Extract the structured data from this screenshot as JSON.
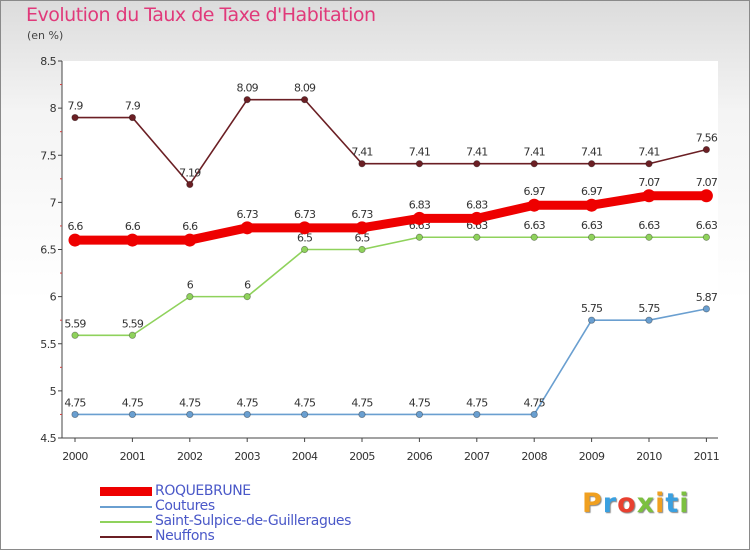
{
  "chart_data": {
    "type": "line",
    "title": "Evolution du Taux de Taxe d'Habitation",
    "subtitle": "(en %)",
    "categories": [
      "2000",
      "2001",
      "2002",
      "2003",
      "2004",
      "2005",
      "2006",
      "2007",
      "2008",
      "2009",
      "2010",
      "2011"
    ],
    "yticks": [
      "4.5",
      "5",
      "5.5",
      "6",
      "6.5",
      "7",
      "7.5",
      "8",
      "8.5"
    ],
    "ylim": [
      4.5,
      8.5
    ],
    "series": [
      {
        "name": "Neuffons",
        "color": "#6b1f24",
        "values": [
          7.9,
          7.9,
          7.19,
          8.09,
          8.09,
          7.41,
          7.41,
          7.41,
          7.41,
          7.41,
          7.41,
          7.56
        ],
        "labels": [
          "7.9",
          "7.9",
          "7.19",
          "8.09",
          "8.09",
          "7.41",
          "7.41",
          "7.41",
          "7.41",
          "7.41",
          "7.41",
          "7.56"
        ]
      },
      {
        "name": "Saint-Sulpice-de-Guilleragues",
        "color": "#8fd25c",
        "values": [
          5.59,
          5.59,
          6,
          6,
          6.5,
          6.5,
          6.63,
          6.63,
          6.63,
          6.63,
          6.63,
          6.63
        ],
        "labels": [
          "5.59",
          "5.59",
          "6",
          "6",
          "6.5",
          "6.5",
          "6.63",
          "6.63",
          "6.63",
          "6.63",
          "6.63",
          "6.63"
        ]
      },
      {
        "name": "Coutures",
        "color": "#6a9fd0",
        "values": [
          4.75,
          4.75,
          4.75,
          4.75,
          4.75,
          4.75,
          4.75,
          4.75,
          4.75,
          5.75,
          5.75,
          5.87
        ],
        "labels": [
          "4.75",
          "4.75",
          "4.75",
          "4.75",
          "4.75",
          "4.75",
          "4.75",
          "4.75",
          "4.75",
          "5.75",
          "5.75",
          "5.87"
        ]
      },
      {
        "name": "ROQUEBRUNE",
        "color": "#ee0000",
        "values": [
          6.6,
          6.6,
          6.6,
          6.73,
          6.73,
          6.73,
          6.83,
          6.83,
          6.97,
          6.97,
          7.07,
          7.07
        ],
        "labels": [
          "6.6",
          "6.6",
          "6.6",
          "6.73",
          "6.73",
          "6.73",
          "6.83",
          "6.83",
          "6.97",
          "6.97",
          "7.07",
          "7.07"
        ]
      }
    ]
  },
  "legend": [
    {
      "label": "ROQUEBRUNE",
      "color": "#ee0000"
    },
    {
      "label": "Coutures",
      "color": "#6a9fd0"
    },
    {
      "label": "Saint-Sulpice-de-Guilleragues",
      "color": "#8fd25c"
    },
    {
      "label": "Neuffons",
      "color": "#6b1f24"
    }
  ],
  "logo": {
    "letters": [
      "P",
      "r",
      "o",
      "x",
      "i",
      "t",
      "i"
    ],
    "colors": [
      "#f0a020",
      "#3aa0e0",
      "#e84030",
      "#7cc040",
      "#f0a020",
      "#3aa0e0",
      "#7cc040"
    ]
  }
}
